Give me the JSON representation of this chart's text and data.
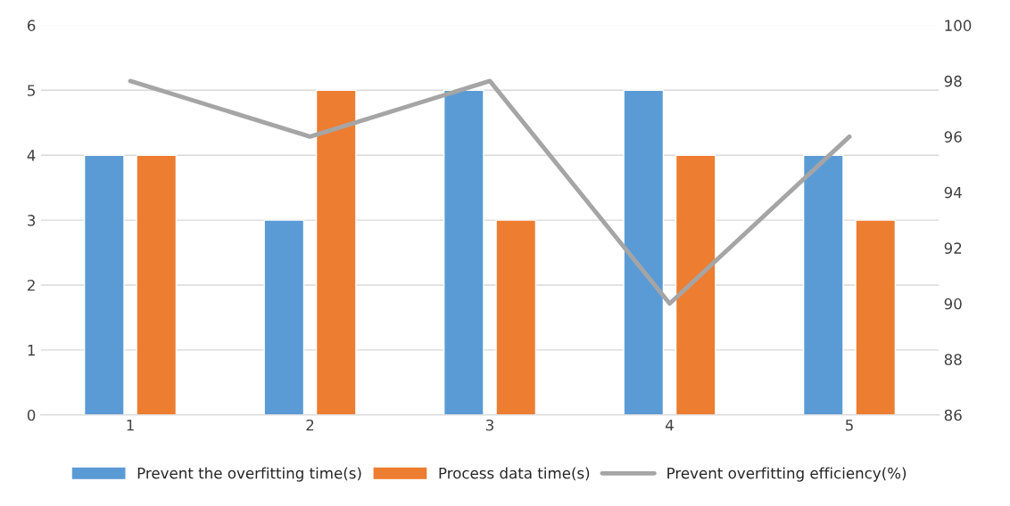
{
  "chart_data": {
    "type": "bar",
    "categories": [
      "1",
      "2",
      "3",
      "4",
      "5"
    ],
    "series": [
      {
        "name": "Prevent the overfitting time(s)",
        "color": "#5b9bd5",
        "values": [
          4,
          3,
          5,
          5,
          4
        ]
      },
      {
        "name": "Process data time(s)",
        "color": "#ed7d31",
        "values": [
          4,
          5,
          3,
          4,
          3
        ]
      },
      {
        "name": "Prevent overfitting efficiency(%)",
        "type": "line",
        "axis": "y2",
        "color": "#a5a5a5",
        "values": [
          98,
          96,
          98,
          90,
          96
        ]
      }
    ],
    "ylim": [
      0,
      6
    ],
    "yticks": [
      0,
      1,
      2,
      3,
      4,
      5,
      6
    ],
    "y2lim": [
      86,
      100
    ],
    "y2ticks": [
      86,
      88,
      90,
      92,
      94,
      96,
      98,
      100
    ],
    "grid": "y",
    "legend": "bottom",
    "marker": "none",
    "line_style": "solid"
  }
}
